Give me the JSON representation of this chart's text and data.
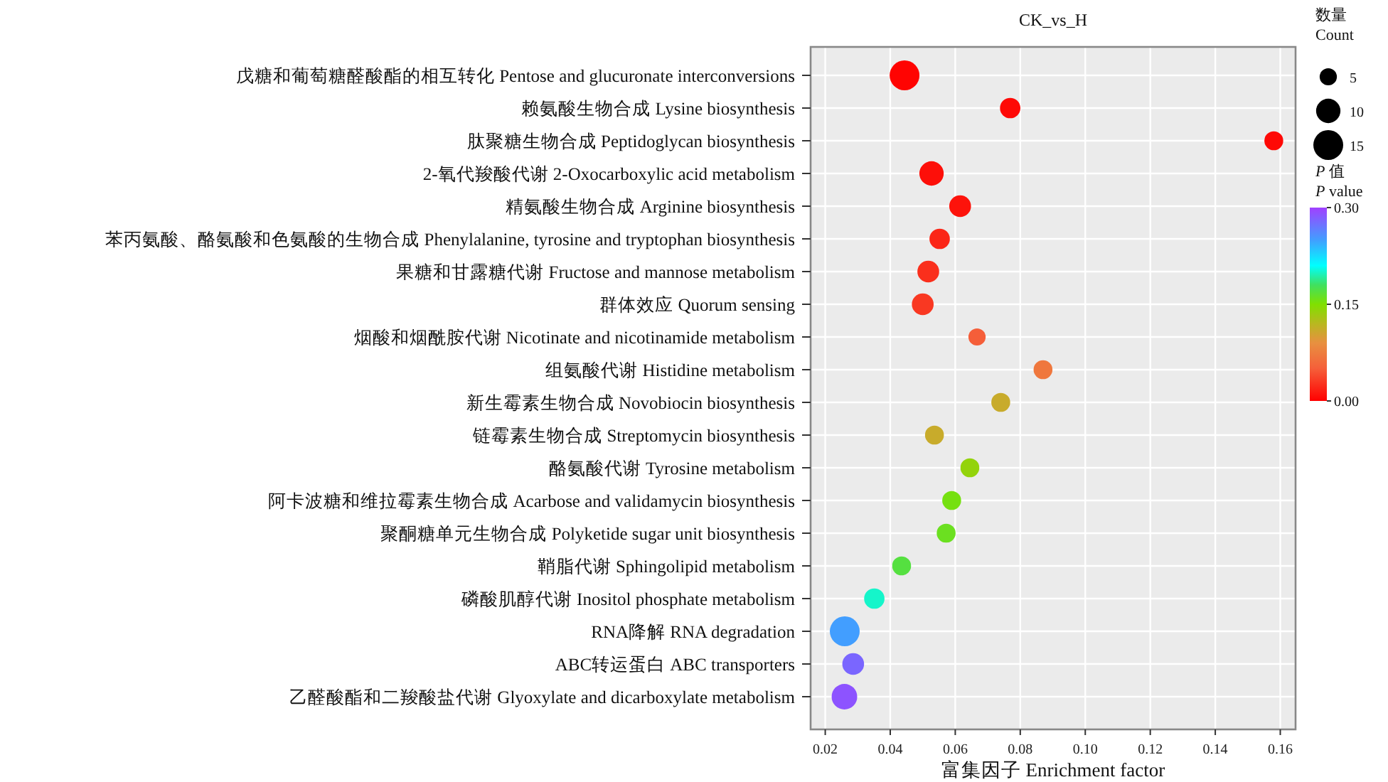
{
  "chart_data": {
    "type": "scatter",
    "title": "CK_vs_H",
    "xlabel": "富集因子 Enrichment factor",
    "orientation": "horizontal",
    "categories": [
      "戊糖和葡萄糖醛酸酯的相互转化 Pentose and glucuronate interconversions",
      "赖氨酸生物合成 Lysine biosynthesis",
      "肽聚糖生物合成 Peptidoglycan biosynthesis",
      "2-氧代羧酸代谢 2-Oxocarboxylic acid metabolism",
      "精氨酸生物合成 Arginine biosynthesis",
      "苯丙氨酸、酪氨酸和色氨酸的生物合成 Phenylalanine, tyrosine and tryptophan biosynthesis",
      "果糖和甘露糖代谢 Fructose and mannose metabolism",
      "群体效应 Quorum sensing",
      "烟酸和烟酰胺代谢 Nicotinate and nicotinamide metabolism",
      "组氨酸代谢 Histidine metabolism",
      "新生霉素生物合成 Novobiocin biosynthesis",
      "链霉素生物合成 Streptomycin biosynthesis",
      "酪氨酸代谢 Tyrosine metabolism",
      "阿卡波糖和维拉霉素生物合成 Acarbose and validamycin biosynthesis",
      "聚酮糖单元生物合成 Polyketide sugar unit biosynthesis",
      "鞘脂代谢 Sphingolipid metabolism",
      "磷酸肌醇代谢 Inositol phosphate metabolism",
      "RNA降解  RNA degradation",
      "ABC转运蛋白 ABC transporters",
      "乙醛酸酯和二羧酸盐代谢 Glyoxylate and dicarboxylate metabolism"
    ],
    "values": [
      0.0444,
      0.0769,
      0.158,
      0.0527,
      0.0615,
      0.0552,
      0.0517,
      0.05,
      0.0667,
      0.087,
      0.074,
      0.0536,
      0.0645,
      0.0589,
      0.0572,
      0.0435,
      0.0351,
      0.026,
      0.0286,
      0.0259
    ],
    "sizes": [
      15,
      7,
      6,
      10,
      8,
      7,
      8,
      8,
      5,
      6,
      6,
      6,
      6,
      6,
      6,
      6,
      7,
      15,
      8,
      11
    ],
    "size_legend": [
      5,
      10,
      15
    ],
    "legend_title": "数量\nCount",
    "cvalues": [
      0.002,
      0.005,
      0.005,
      0.008,
      0.01,
      0.02,
      0.025,
      0.03,
      0.05,
      0.07,
      0.11,
      0.11,
      0.14,
      0.155,
      0.16,
      0.17,
      0.2,
      0.25,
      0.28,
      0.29
    ],
    "clabel": "P 值\nP value",
    "clim": [
      0,
      0.3
    ],
    "cticks": [
      {
        "value": 0,
        "label": "0.00"
      },
      {
        "value": 0.15,
        "label": "0.15"
      },
      {
        "value": 0.3,
        "label": "0.30"
      }
    ],
    "xlim": [
      0.0155,
      0.1647
    ],
    "xticks": [
      {
        "value": 0.02,
        "label": "0.02"
      },
      {
        "value": 0.04,
        "label": "0.04"
      },
      {
        "value": 0.06,
        "label": "0.06"
      },
      {
        "value": 0.08,
        "label": "0.08"
      },
      {
        "value": 0.1,
        "label": "0.10"
      },
      {
        "value": 0.12,
        "label": "0.12"
      },
      {
        "value": 0.14,
        "label": "0.14"
      },
      {
        "value": 0.16,
        "label": "0.16"
      }
    ],
    "grid": true,
    "marker": "circle"
  }
}
